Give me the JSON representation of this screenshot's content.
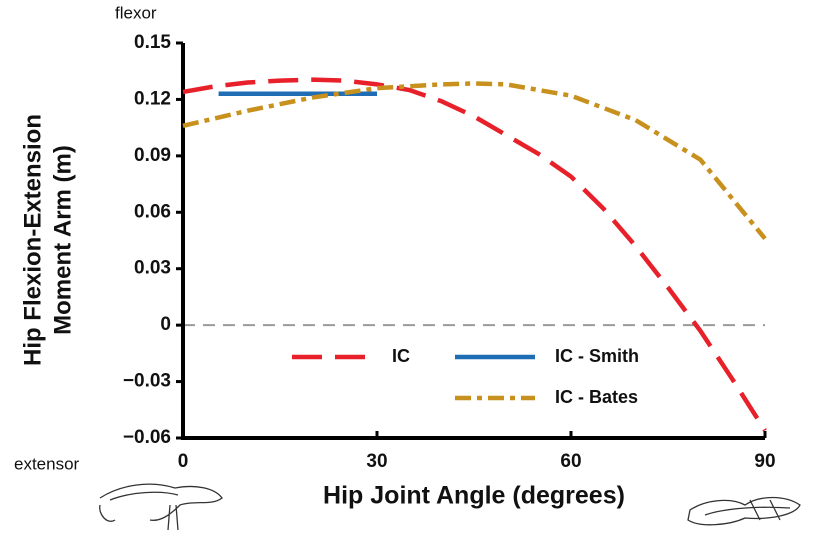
{
  "chart_data": {
    "type": "line",
    "xlabel": "Hip Joint Angle (degrees)",
    "ylabel": [
      "Hip Flexion-Extension",
      "Moment Arm (m)"
    ],
    "annotations": [
      "flexor",
      "extensor"
    ],
    "xlim": [
      0,
      90
    ],
    "xticks": [
      0,
      30,
      60,
      90
    ],
    "ylim": [
      -0.06,
      0.15
    ],
    "yticks": [
      {
        "value": -0.06,
        "label": "−0.06"
      },
      {
        "value": -0.03,
        "label": "−0.03"
      },
      0,
      0.03,
      0.06,
      0.09,
      0.12,
      0.15
    ],
    "zero_line": true,
    "series": [
      {
        "name": "IC",
        "color": "#e8202a",
        "dash": "30,13",
        "x": [
          0,
          5,
          10,
          15,
          20,
          25,
          30,
          35,
          40,
          45,
          50,
          55,
          60,
          65,
          70,
          75,
          80,
          85,
          90
        ],
        "values": [
          0.124,
          0.127,
          0.129,
          0.13,
          0.1305,
          0.13,
          0.128,
          0.125,
          0.119,
          0.111,
          0.101,
          0.091,
          0.079,
          0.062,
          0.042,
          0.02,
          -0.003,
          -0.029,
          -0.056
        ]
      },
      {
        "name": "IC - Smith",
        "color": "#1f6db5",
        "dash": "none",
        "x": [
          5.5,
          30
        ],
        "values": [
          0.123,
          0.123
        ]
      },
      {
        "name": "IC - Bates",
        "color": "#c8901c",
        "dash": "16,6,5,6",
        "x": [
          0,
          10,
          20,
          30,
          40,
          45,
          50,
          60,
          70,
          80,
          90
        ],
        "values": [
          0.106,
          0.114,
          0.121,
          0.126,
          0.128,
          0.1285,
          0.128,
          0.122,
          0.109,
          0.088,
          0.046
        ]
      }
    ]
  }
}
